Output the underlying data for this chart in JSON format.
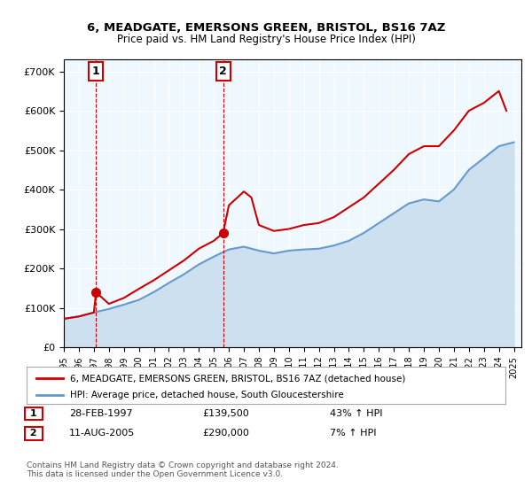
{
  "title1": "6, MEADGATE, EMERSONS GREEN, BRISTOL, BS16 7AZ",
  "title2": "Price paid vs. HM Land Registry's House Price Index (HPI)",
  "legend_line1": "6, MEADGATE, EMERSONS GREEN, BRISTOL, BS16 7AZ (detached house)",
  "legend_line2": "HPI: Average price, detached house, South Gloucestershire",
  "transaction1_label": "1",
  "transaction1_date": "28-FEB-1997",
  "transaction1_price": "£139,500",
  "transaction1_hpi": "43% ↑ HPI",
  "transaction1_year": 1997.15,
  "transaction1_value": 139500,
  "transaction2_label": "2",
  "transaction2_date": "11-AUG-2005",
  "transaction2_price": "£290,000",
  "transaction2_hpi": "7% ↑ HPI",
  "transaction2_year": 2005.62,
  "transaction2_value": 290000,
  "price_color": "#cc0000",
  "hpi_color": "#6699cc",
  "hpi_fill_color": "#cce0f0",
  "vline_color": "#cc0000",
  "background_color": "#f0f8ff",
  "plot_bg_color": "#f0f8ff",
  "footer_text": "Contains HM Land Registry data © Crown copyright and database right 2024.\nThis data is licensed under the Open Government Licence v3.0.",
  "ylim": [
    0,
    730000
  ],
  "xlabel_years": [
    "1995",
    "1996",
    "1997",
    "1998",
    "1999",
    "2000",
    "2001",
    "2002",
    "2003",
    "2004",
    "2005",
    "2006",
    "2007",
    "2008",
    "2009",
    "2010",
    "2011",
    "2012",
    "2013",
    "2014",
    "2015",
    "2016",
    "2017",
    "2018",
    "2019",
    "2020",
    "2021",
    "2022",
    "2023",
    "2024",
    "2025"
  ],
  "hpi_years": [
    1995,
    1996,
    1997,
    1998,
    1999,
    2000,
    2001,
    2002,
    2003,
    2004,
    2005,
    2006,
    2007,
    2008,
    2009,
    2010,
    2011,
    2012,
    2013,
    2014,
    2015,
    2016,
    2017,
    2018,
    2019,
    2020,
    2021,
    2022,
    2023,
    2024,
    2025
  ],
  "hpi_values": [
    72000,
    78000,
    88000,
    97000,
    108000,
    120000,
    140000,
    163000,
    185000,
    210000,
    230000,
    248000,
    255000,
    245000,
    238000,
    245000,
    248000,
    250000,
    258000,
    270000,
    290000,
    315000,
    340000,
    365000,
    375000,
    370000,
    400000,
    450000,
    480000,
    510000,
    520000
  ],
  "price_years": [
    1995,
    1996,
    1997,
    1997.15,
    1998,
    1999,
    2000,
    2001,
    2002,
    2003,
    2004,
    2005,
    2005.62,
    2006,
    2007,
    2007.5,
    2008,
    2009,
    2010,
    2011,
    2012,
    2013,
    2014,
    2015,
    2016,
    2017,
    2018,
    2019,
    2020,
    2021,
    2022,
    2023,
    2024,
    2024.5
  ],
  "price_values": [
    72000,
    78000,
    88000,
    139500,
    110000,
    125000,
    148000,
    170000,
    195000,
    220000,
    250000,
    270000,
    290000,
    360000,
    395000,
    380000,
    310000,
    295000,
    300000,
    310000,
    315000,
    330000,
    355000,
    380000,
    415000,
    450000,
    490000,
    510000,
    510000,
    550000,
    600000,
    620000,
    650000,
    600000
  ]
}
